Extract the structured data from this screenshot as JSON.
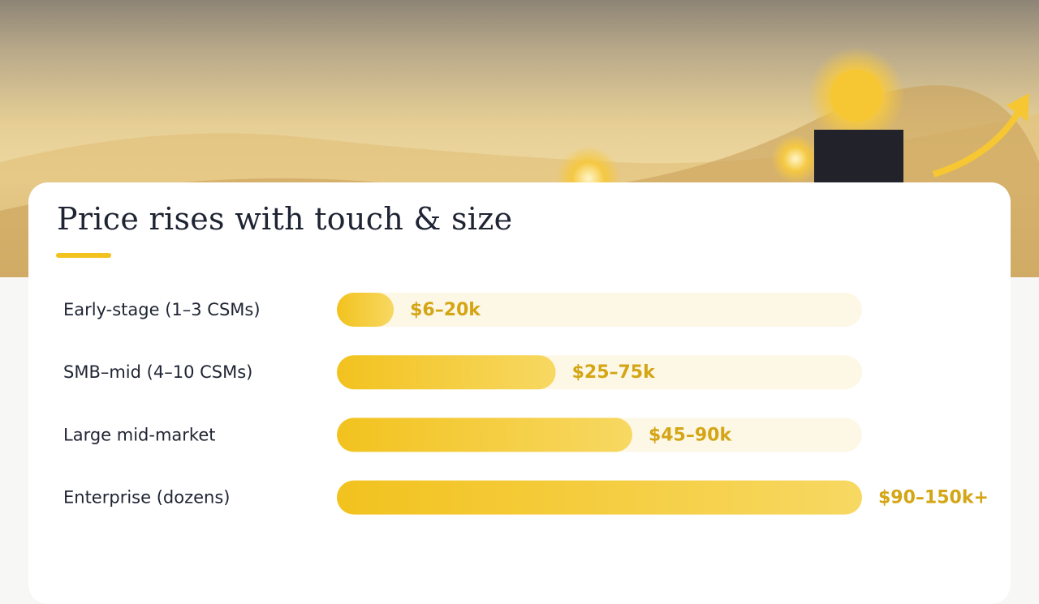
{
  "chart_data": {
    "type": "bar",
    "orientation": "horizontal",
    "title": "Price rises with touch & size",
    "categories": [
      "Early-stage (1–3 CSMs)",
      "SMB–mid (4–10 CSMs)",
      "Large mid-market",
      "Enterprise (dozens)"
    ],
    "values": [
      13,
      50,
      67.5,
      120
    ],
    "value_labels": [
      "$6–20k",
      "$25–75k",
      "$45–90k",
      "$90–150k+"
    ],
    "xlim": [
      0,
      120
    ],
    "color": "#f2c21e"
  }
}
